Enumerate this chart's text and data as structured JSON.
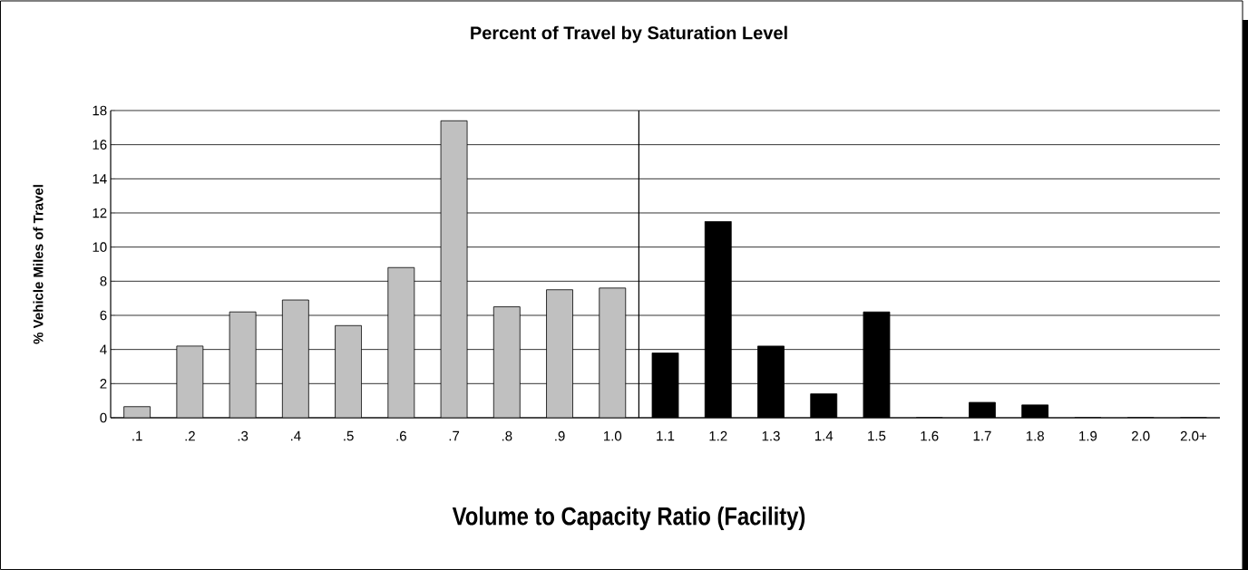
{
  "chart_data": {
    "type": "bar",
    "title": "Percent of Travel by Saturation Level",
    "xlabel": "Volume to Capacity Ratio (Facility)",
    "ylabel": "% Vehicle Miles of Travel",
    "categories": [
      ".1",
      ".2",
      ".3",
      ".4",
      ".5",
      ".6",
      ".7",
      ".8",
      ".9",
      "1.0",
      "1.1",
      "1.2",
      "1.3",
      "1.4",
      "1.5",
      "1.6",
      "1.7",
      "1.8",
      "1.9",
      "2.0",
      "2.0+"
    ],
    "values": [
      0.65,
      4.2,
      6.2,
      6.9,
      5.4,
      8.8,
      17.4,
      6.5,
      7.5,
      7.6,
      3.8,
      11.5,
      4.2,
      1.4,
      6.2,
      0,
      0.9,
      0.75,
      0,
      0,
      0
    ],
    "colors": [
      "#c0c0c0",
      "#c0c0c0",
      "#c0c0c0",
      "#c0c0c0",
      "#c0c0c0",
      "#c0c0c0",
      "#c0c0c0",
      "#c0c0c0",
      "#c0c0c0",
      "#c0c0c0",
      "#000000",
      "#000000",
      "#000000",
      "#000000",
      "#000000",
      "#000000",
      "#000000",
      "#000000",
      "#000000",
      "#000000",
      "#000000"
    ],
    "ylim": [
      0,
      18
    ],
    "yticks": [
      0,
      2,
      4,
      6,
      8,
      10,
      12,
      14,
      16,
      18
    ],
    "grid": "y"
  }
}
